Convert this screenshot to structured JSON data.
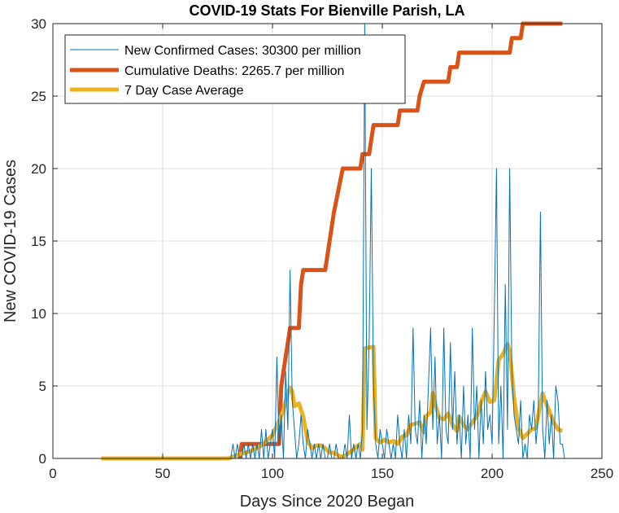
{
  "chart_data": {
    "type": "line",
    "title": "COVID-19 Stats For Bienville Parish, LA",
    "xlabel": "Days Since 2020 Began",
    "ylabel": "New COVID-19 Cases",
    "xlim": [
      0,
      250
    ],
    "ylim": [
      0,
      30
    ],
    "xticks": [
      0,
      50,
      100,
      150,
      200,
      250
    ],
    "yticks": [
      0,
      5,
      10,
      15,
      20,
      25,
      30
    ],
    "grid": true,
    "legend_placement": "top-left",
    "series": [
      {
        "name": "New Confirmed Cases: 30300 per million",
        "color": "#0072BD",
        "style": "thin-line",
        "points": [
          [
            22,
            0
          ],
          [
            80,
            0
          ],
          [
            81,
            0
          ],
          [
            82,
            1
          ],
          [
            83,
            0
          ],
          [
            84,
            1
          ],
          [
            85,
            0
          ],
          [
            86,
            0
          ],
          [
            87,
            1
          ],
          [
            88,
            0
          ],
          [
            89,
            1
          ],
          [
            90,
            0
          ],
          [
            91,
            1
          ],
          [
            92,
            0
          ],
          [
            93,
            1
          ],
          [
            94,
            0
          ],
          [
            95,
            2
          ],
          [
            96,
            0
          ],
          [
            97,
            2
          ],
          [
            98,
            0
          ],
          [
            99,
            1
          ],
          [
            100,
            2
          ],
          [
            101,
            0
          ],
          [
            102,
            7
          ],
          [
            103,
            1
          ],
          [
            104,
            3
          ],
          [
            105,
            0
          ],
          [
            106,
            6
          ],
          [
            107,
            2
          ],
          [
            108,
            13
          ],
          [
            109,
            4
          ],
          [
            110,
            2
          ],
          [
            111,
            0
          ],
          [
            112,
            1
          ],
          [
            113,
            3
          ],
          [
            114,
            1
          ],
          [
            115,
            0
          ],
          [
            116,
            2
          ],
          [
            117,
            1
          ],
          [
            118,
            0
          ],
          [
            119,
            1
          ],
          [
            120,
            0
          ],
          [
            121,
            1
          ],
          [
            122,
            0
          ],
          [
            123,
            1
          ],
          [
            124,
            0
          ],
          [
            125,
            0
          ],
          [
            126,
            1
          ],
          [
            127,
            0
          ],
          [
            128,
            0
          ],
          [
            129,
            1
          ],
          [
            130,
            0
          ],
          [
            131,
            0
          ],
          [
            132,
            0
          ],
          [
            133,
            1
          ],
          [
            134,
            0
          ],
          [
            135,
            3
          ],
          [
            136,
            0
          ],
          [
            137,
            1
          ],
          [
            138,
            0
          ],
          [
            139,
            1
          ],
          [
            140,
            0
          ],
          [
            141,
            2
          ],
          [
            142,
            30
          ],
          [
            143,
            2
          ],
          [
            144,
            8
          ],
          [
            145,
            20
          ],
          [
            146,
            5
          ],
          [
            147,
            1
          ],
          [
            148,
            0
          ],
          [
            149,
            2
          ],
          [
            150,
            1
          ],
          [
            151,
            0
          ],
          [
            152,
            2
          ],
          [
            153,
            1
          ],
          [
            154,
            0
          ],
          [
            155,
            1
          ],
          [
            156,
            0
          ],
          [
            157,
            3
          ],
          [
            158,
            1
          ],
          [
            159,
            0
          ],
          [
            160,
            2
          ],
          [
            161,
            0
          ],
          [
            162,
            3
          ],
          [
            163,
            1
          ],
          [
            164,
            9
          ],
          [
            165,
            2
          ],
          [
            166,
            1
          ],
          [
            167,
            4
          ],
          [
            168,
            0
          ],
          [
            169,
            3
          ],
          [
            170,
            1
          ],
          [
            171,
            5
          ],
          [
            172,
            9
          ],
          [
            173,
            2
          ],
          [
            174,
            7
          ],
          [
            175,
            1
          ],
          [
            176,
            3
          ],
          [
            177,
            0
          ],
          [
            178,
            9
          ],
          [
            179,
            2
          ],
          [
            180,
            1
          ],
          [
            181,
            8
          ],
          [
            182,
            2
          ],
          [
            183,
            6
          ],
          [
            184,
            1
          ],
          [
            185,
            3
          ],
          [
            186,
            0
          ],
          [
            187,
            5
          ],
          [
            188,
            1
          ],
          [
            189,
            3
          ],
          [
            190,
            0
          ],
          [
            191,
            9
          ],
          [
            192,
            2
          ],
          [
            193,
            5
          ],
          [
            194,
            0
          ],
          [
            195,
            4
          ],
          [
            196,
            1
          ],
          [
            197,
            6
          ],
          [
            198,
            2
          ],
          [
            199,
            3
          ],
          [
            200,
            1
          ],
          [
            201,
            10
          ],
          [
            202,
            20
          ],
          [
            203,
            1
          ],
          [
            204,
            5
          ],
          [
            205,
            0
          ],
          [
            206,
            12
          ],
          [
            207,
            2
          ],
          [
            208,
            20
          ],
          [
            209,
            6
          ],
          [
            210,
            3
          ],
          [
            211,
            2
          ],
          [
            212,
            1
          ],
          [
            213,
            4
          ],
          [
            214,
            0
          ],
          [
            215,
            1
          ],
          [
            216,
            0
          ],
          [
            217,
            3
          ],
          [
            218,
            2
          ],
          [
            219,
            4
          ],
          [
            220,
            1
          ],
          [
            221,
            3
          ],
          [
            222,
            17
          ],
          [
            223,
            2
          ],
          [
            224,
            0
          ],
          [
            225,
            4
          ],
          [
            226,
            1
          ],
          [
            227,
            3
          ],
          [
            228,
            0
          ],
          [
            229,
            5
          ],
          [
            230,
            4
          ],
          [
            231,
            1
          ],
          [
            232,
            1
          ],
          [
            233,
            0
          ]
        ]
      },
      {
        "name": "Cumulative Deaths: 2265.7 per million",
        "color": "#D95319",
        "style": "thick-line",
        "points": [
          [
            85,
            0
          ],
          [
            86,
            1
          ],
          [
            103,
            1
          ],
          [
            104,
            5
          ],
          [
            105,
            6
          ],
          [
            107,
            8
          ],
          [
            108,
            9
          ],
          [
            112,
            9
          ],
          [
            113,
            12
          ],
          [
            114,
            13
          ],
          [
            124,
            13
          ],
          [
            125,
            14
          ],
          [
            128,
            17
          ],
          [
            132,
            20
          ],
          [
            140,
            20
          ],
          [
            141,
            21
          ],
          [
            144,
            21
          ],
          [
            145,
            22
          ],
          [
            146,
            23
          ],
          [
            157,
            23
          ],
          [
            158,
            24
          ],
          [
            166,
            24
          ],
          [
            167,
            25
          ],
          [
            169,
            26
          ],
          [
            180,
            26
          ],
          [
            181,
            27
          ],
          [
            184,
            27
          ],
          [
            185,
            28
          ],
          [
            208,
            28
          ],
          [
            209,
            29
          ],
          [
            213,
            29
          ],
          [
            214,
            30
          ],
          [
            232,
            30
          ]
        ]
      },
      {
        "name": "7 Day Case Average",
        "color": "#EDB120",
        "style": "thick-line",
        "points": [
          [
            22,
            0
          ],
          [
            80,
            0
          ],
          [
            85,
            0.3
          ],
          [
            90,
            0.5
          ],
          [
            95,
            0.9
          ],
          [
            100,
            1.6
          ],
          [
            103,
            2.6
          ],
          [
            105,
            3.3
          ],
          [
            107,
            4.5
          ],
          [
            108,
            4.9
          ],
          [
            109,
            4.6
          ],
          [
            110,
            3.6
          ],
          [
            112,
            3.8
          ],
          [
            114,
            2.9
          ],
          [
            116,
            1.2
          ],
          [
            118,
            0.7
          ],
          [
            120,
            0.9
          ],
          [
            122,
            0.9
          ],
          [
            124,
            0.7
          ],
          [
            126,
            0.4
          ],
          [
            128,
            0.4
          ],
          [
            130,
            0.2
          ],
          [
            132,
            0.1
          ],
          [
            134,
            0.3
          ],
          [
            136,
            0.5
          ],
          [
            138,
            0.8
          ],
          [
            140,
            1.0
          ],
          [
            141,
            0.6
          ],
          [
            142,
            7.6
          ],
          [
            146,
            7.7
          ],
          [
            147,
            1.4
          ],
          [
            149,
            1.1
          ],
          [
            151,
            1.3
          ],
          [
            153,
            1.1
          ],
          [
            155,
            1.2
          ],
          [
            157,
            1.0
          ],
          [
            159,
            1.5
          ],
          [
            161,
            1.6
          ],
          [
            163,
            2.3
          ],
          [
            165,
            2.4
          ],
          [
            167,
            2.5
          ],
          [
            169,
            1.8
          ],
          [
            170,
            2.9
          ],
          [
            172,
            3.2
          ],
          [
            173,
            4.5
          ],
          [
            174,
            3.8
          ],
          [
            176,
            2.8
          ],
          [
            178,
            2.7
          ],
          [
            180,
            3.1
          ],
          [
            182,
            2.3
          ],
          [
            184,
            1.9
          ],
          [
            185,
            2.9
          ],
          [
            187,
            2.3
          ],
          [
            189,
            2.0
          ],
          [
            191,
            2.5
          ],
          [
            193,
            2.9
          ],
          [
            195,
            3.9
          ],
          [
            197,
            4.6
          ],
          [
            199,
            3.9
          ],
          [
            201,
            4.0
          ],
          [
            203,
            6.8
          ],
          [
            205,
            7.2
          ],
          [
            207,
            7.9
          ],
          [
            208,
            7.4
          ],
          [
            210,
            4.2
          ],
          [
            212,
            2.1
          ],
          [
            214,
            1.4
          ],
          [
            216,
            1.7
          ],
          [
            218,
            2.0
          ],
          [
            220,
            2.1
          ],
          [
            222,
            3.8
          ],
          [
            223,
            4.5
          ],
          [
            224,
            4.0
          ],
          [
            226,
            3.3
          ],
          [
            228,
            2.5
          ],
          [
            230,
            2.0
          ],
          [
            232,
            1.9
          ]
        ]
      }
    ]
  }
}
